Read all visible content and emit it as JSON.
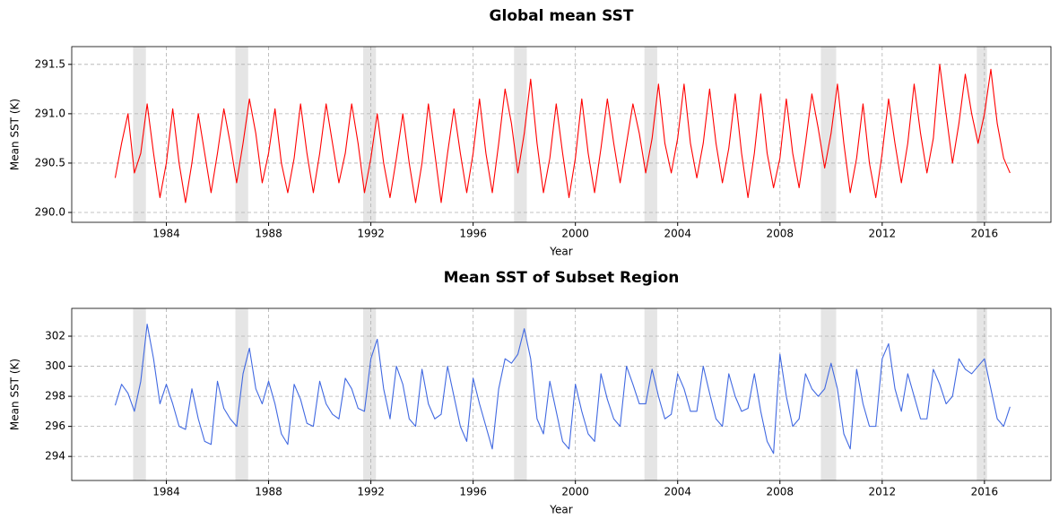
{
  "chart_data": [
    {
      "type": "line",
      "title": "Global mean SST",
      "xlabel": "Year",
      "ylabel": "Mean SST (K)",
      "color": "#ff0000",
      "x": [
        1982,
        1982.25,
        1982.5,
        1982.75,
        1983,
        1983.25,
        1983.5,
        1983.75,
        1984,
        1984.25,
        1984.5,
        1984.75,
        1985,
        1985.25,
        1985.5,
        1985.75,
        1986,
        1986.25,
        1986.5,
        1986.75,
        1987,
        1987.25,
        1987.5,
        1987.75,
        1988,
        1988.25,
        1988.5,
        1988.75,
        1989,
        1989.25,
        1989.5,
        1989.75,
        1990,
        1990.25,
        1990.5,
        1990.75,
        1991,
        1991.25,
        1991.5,
        1991.75,
        1992,
        1992.25,
        1992.5,
        1992.75,
        1993,
        1993.25,
        1993.5,
        1993.75,
        1994,
        1994.25,
        1994.5,
        1994.75,
        1995,
        1995.25,
        1995.5,
        1995.75,
        1996,
        1996.25,
        1996.5,
        1996.75,
        1997,
        1997.25,
        1997.5,
        1997.75,
        1998,
        1998.25,
        1998.5,
        1998.75,
        1999,
        1999.25,
        1999.5,
        1999.75,
        2000,
        2000.25,
        2000.5,
        2000.75,
        2001,
        2001.25,
        2001.5,
        2001.75,
        2002,
        2002.25,
        2002.5,
        2002.75,
        2003,
        2003.25,
        2003.5,
        2003.75,
        2004,
        2004.25,
        2004.5,
        2004.75,
        2005,
        2005.25,
        2005.5,
        2005.75,
        2006,
        2006.25,
        2006.5,
        2006.75,
        2007,
        2007.25,
        2007.5,
        2007.75,
        2008,
        2008.25,
        2008.5,
        2008.75,
        2009,
        2009.25,
        2009.5,
        2009.75,
        2010,
        2010.25,
        2010.5,
        2010.75,
        2011,
        2011.25,
        2011.5,
        2011.75,
        2012,
        2012.25,
        2012.5,
        2012.75,
        2013,
        2013.25,
        2013.5,
        2013.75,
        2014,
        2014.25,
        2014.5,
        2014.75,
        2015,
        2015.25,
        2015.5,
        2015.75,
        2016,
        2016.25,
        2016.5,
        2016.75,
        2017
      ],
      "values": [
        290.35,
        290.7,
        291.0,
        290.4,
        290.6,
        291.1,
        290.6,
        290.15,
        290.5,
        291.05,
        290.5,
        290.1,
        290.5,
        291.0,
        290.6,
        290.2,
        290.6,
        291.05,
        290.7,
        290.3,
        290.7,
        291.15,
        290.8,
        290.3,
        290.6,
        291.05,
        290.5,
        290.2,
        290.55,
        291.1,
        290.6,
        290.2,
        290.6,
        291.1,
        290.7,
        290.3,
        290.6,
        291.1,
        290.7,
        290.2,
        290.55,
        291.0,
        290.5,
        290.15,
        290.55,
        291.0,
        290.5,
        290.1,
        290.5,
        291.1,
        290.6,
        290.1,
        290.6,
        291.05,
        290.6,
        290.2,
        290.6,
        291.15,
        290.6,
        290.2,
        290.7,
        291.25,
        290.9,
        290.4,
        290.8,
        291.35,
        290.7,
        290.2,
        290.55,
        291.1,
        290.6,
        290.15,
        290.55,
        291.15,
        290.6,
        290.2,
        290.65,
        291.15,
        290.7,
        290.3,
        290.7,
        291.1,
        290.8,
        290.4,
        290.75,
        291.3,
        290.7,
        290.4,
        290.75,
        291.3,
        290.7,
        290.35,
        290.7,
        291.25,
        290.7,
        290.3,
        290.65,
        291.2,
        290.6,
        290.15,
        290.6,
        291.2,
        290.6,
        290.25,
        290.55,
        291.15,
        290.6,
        290.25,
        290.7,
        291.2,
        290.85,
        290.45,
        290.8,
        291.3,
        290.7,
        290.2,
        290.55,
        291.1,
        290.5,
        290.15,
        290.6,
        291.15,
        290.7,
        290.3,
        290.7,
        291.3,
        290.8,
        290.4,
        290.75,
        291.5,
        291.0,
        290.5,
        290.9,
        291.4,
        291.0,
        290.7,
        291.0,
        291.45,
        290.9,
        290.55,
        290.4
      ],
      "xlim": [
        1980.3,
        2018.6
      ],
      "xticks": [
        1984,
        1988,
        1992,
        1996,
        2000,
        2004,
        2008,
        2012,
        2016
      ],
      "ylim": [
        289.9,
        291.68
      ],
      "yticks": [
        {
          "value": 290,
          "label": "290.0"
        },
        290.5,
        {
          "value": 291,
          "label": "291.0"
        },
        291.5
      ],
      "grid": true,
      "shade_color": "#e5e5e5",
      "shaded_regions": [
        [
          1982.7,
          1983.2
        ],
        [
          1986.7,
          1987.2
        ],
        [
          1991.7,
          1992.2
        ],
        [
          1997.6,
          1998.1
        ],
        [
          2002.7,
          2003.2
        ],
        [
          2009.6,
          2010.2
        ],
        [
          2015.7,
          2016.1
        ]
      ]
    },
    {
      "type": "line",
      "title": "Mean SST of Subset Region",
      "xlabel": "Year",
      "ylabel": "Mean SST (K)",
      "color": "#4169e1",
      "x": [
        1982,
        1982.25,
        1982.5,
        1982.75,
        1983,
        1983.25,
        1983.5,
        1983.75,
        1984,
        1984.25,
        1984.5,
        1984.75,
        1985,
        1985.25,
        1985.5,
        1985.75,
        1986,
        1986.25,
        1986.5,
        1986.75,
        1987,
        1987.25,
        1987.5,
        1987.75,
        1988,
        1988.25,
        1988.5,
        1988.75,
        1989,
        1989.25,
        1989.5,
        1989.75,
        1990,
        1990.25,
        1990.5,
        1990.75,
        1991,
        1991.25,
        1991.5,
        1991.75,
        1992,
        1992.25,
        1992.5,
        1992.75,
        1993,
        1993.25,
        1993.5,
        1993.75,
        1994,
        1994.25,
        1994.5,
        1994.75,
        1995,
        1995.25,
        1995.5,
        1995.75,
        1996,
        1996.25,
        1996.5,
        1996.75,
        1997,
        1997.25,
        1997.5,
        1997.75,
        1998,
        1998.25,
        1998.5,
        1998.75,
        1999,
        1999.25,
        1999.5,
        1999.75,
        2000,
        2000.25,
        2000.5,
        2000.75,
        2001,
        2001.25,
        2001.5,
        2001.75,
        2002,
        2002.25,
        2002.5,
        2002.75,
        2003,
        2003.25,
        2003.5,
        2003.75,
        2004,
        2004.25,
        2004.5,
        2004.75,
        2005,
        2005.25,
        2005.5,
        2005.75,
        2006,
        2006.25,
        2006.5,
        2006.75,
        2007,
        2007.25,
        2007.5,
        2007.75,
        2008,
        2008.25,
        2008.5,
        2008.75,
        2009,
        2009.25,
        2009.5,
        2009.75,
        2010,
        2010.25,
        2010.5,
        2010.75,
        2011,
        2011.25,
        2011.5,
        2011.75,
        2012,
        2012.25,
        2012.5,
        2012.75,
        2013,
        2013.25,
        2013.5,
        2013.75,
        2014,
        2014.25,
        2014.5,
        2014.75,
        2015,
        2015.25,
        2015.5,
        2015.75,
        2016,
        2016.25,
        2016.5,
        2016.75,
        2017
      ],
      "values": [
        297.4,
        298.8,
        298.2,
        297.0,
        299.0,
        302.8,
        300.5,
        297.5,
        298.8,
        297.5,
        296.0,
        295.8,
        298.5,
        296.5,
        295.0,
        294.8,
        299.0,
        297.2,
        296.5,
        296.0,
        299.5,
        301.2,
        298.5,
        297.5,
        299.0,
        297.5,
        295.5,
        294.8,
        298.8,
        297.8,
        296.2,
        296.0,
        299.0,
        297.5,
        296.8,
        296.5,
        299.2,
        298.5,
        297.2,
        297.0,
        300.5,
        301.8,
        298.5,
        296.5,
        300.0,
        298.8,
        296.5,
        296.0,
        299.8,
        297.5,
        296.5,
        296.8,
        300.0,
        298.0,
        296.0,
        295.0,
        299.2,
        297.5,
        296.0,
        294.5,
        298.5,
        300.5,
        300.2,
        300.8,
        302.5,
        300.5,
        296.5,
        295.5,
        299.0,
        297.0,
        295.0,
        294.5,
        298.8,
        297.0,
        295.5,
        295.0,
        299.5,
        297.8,
        296.5,
        296.0,
        300.0,
        298.8,
        297.5,
        297.5,
        299.8,
        298.0,
        296.5,
        296.8,
        299.5,
        298.5,
        297.0,
        297.0,
        300.0,
        298.2,
        296.5,
        296.0,
        299.5,
        298.0,
        297.0,
        297.2,
        299.5,
        297.0,
        295.0,
        294.2,
        300.8,
        298.0,
        296.0,
        296.5,
        299.5,
        298.5,
        298.0,
        298.5,
        300.2,
        298.5,
        295.5,
        294.5,
        299.8,
        297.5,
        296.0,
        296.0,
        300.5,
        301.5,
        298.5,
        297.0,
        299.5,
        298.0,
        296.5,
        296.5,
        299.8,
        298.8,
        297.5,
        298.0,
        300.5,
        299.8,
        299.5,
        300.0,
        300.5,
        298.5,
        296.5,
        296.0,
        297.3
      ],
      "xlim": [
        1980.3,
        2018.6
      ],
      "xticks": [
        1984,
        1988,
        1992,
        1996,
        2000,
        2004,
        2008,
        2012,
        2016
      ],
      "ylim": [
        292.4,
        303.85
      ],
      "yticks": [
        294,
        296,
        298,
        300,
        302
      ],
      "grid": true,
      "shade_color": "#e5e5e5",
      "shaded_regions": [
        [
          1982.7,
          1983.2
        ],
        [
          1986.7,
          1987.2
        ],
        [
          1991.7,
          1992.2
        ],
        [
          1997.6,
          1998.1
        ],
        [
          2002.7,
          2003.2
        ],
        [
          2009.6,
          2010.2
        ],
        [
          2015.7,
          2016.1
        ]
      ]
    }
  ]
}
